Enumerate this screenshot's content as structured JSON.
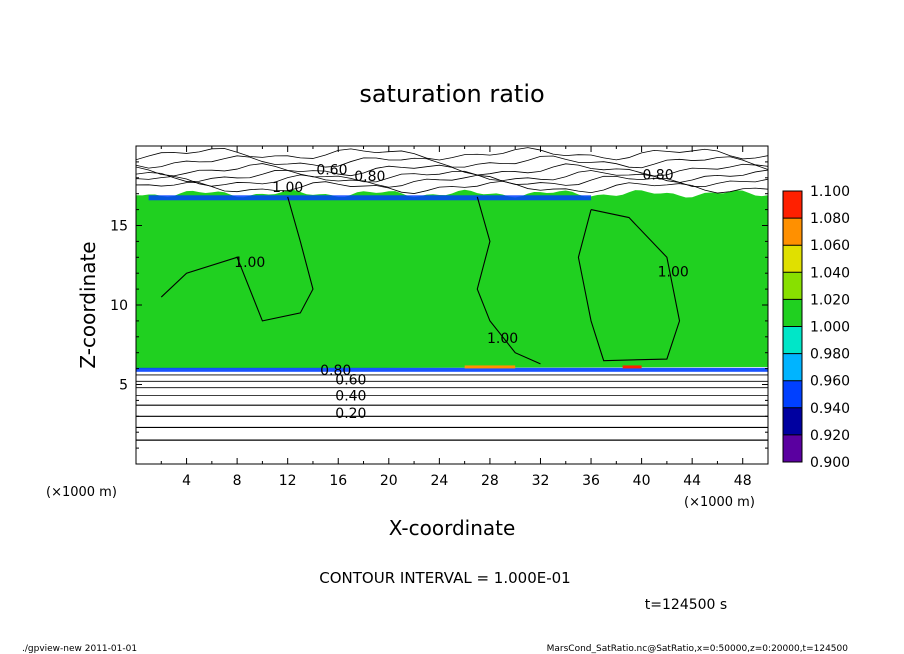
{
  "chart_data": {
    "type": "heatmap",
    "title": "saturation ratio",
    "xlabel": "X-coordinate",
    "ylabel": "Z-coordinate",
    "x_unit": "(×1000 m)",
    "y_unit": "(×1000 m)",
    "xlim": [
      0,
      50
    ],
    "ylim": [
      0,
      20
    ],
    "x_ticks": [
      4,
      8,
      12,
      16,
      20,
      24,
      28,
      32,
      36,
      40,
      44,
      48
    ],
    "y_ticks": [
      5,
      10,
      15
    ],
    "colorbar": {
      "levels": [
        0.9,
        0.92,
        0.94,
        0.96,
        0.98,
        1.0,
        1.02,
        1.04,
        1.06,
        1.08,
        1.1
      ],
      "tick_labels": [
        "0.900",
        "0.920",
        "0.940",
        "0.960",
        "0.980",
        "1.000",
        "1.020",
        "1.040",
        "1.060",
        "1.080",
        "1.100"
      ],
      "colors": [
        "#5a00a0",
        "#0000a0",
        "#0040ff",
        "#00b4ff",
        "#00e6c8",
        "#20d020",
        "#88e000",
        "#e0e000",
        "#ff9000",
        "#ff2000",
        "#ff8080"
      ]
    },
    "field": {
      "saturated_layer_z": [
        6,
        17
      ],
      "value_in_layer": 1.0
    },
    "contour_labels": [
      {
        "text": "0.60",
        "x": 15.5,
        "z": 18.2
      },
      {
        "text": "0.80",
        "x": 18.5,
        "z": 17.8
      },
      {
        "text": "1.00",
        "x": 12,
        "z": 17.1
      },
      {
        "text": "0.80",
        "x": 41.3,
        "z": 17.9
      },
      {
        "text": "1.00",
        "x": 9,
        "z": 12.4
      },
      {
        "text": "1.00",
        "x": 29,
        "z": 7.6
      },
      {
        "text": "1.00",
        "x": 42.5,
        "z": 11.8
      },
      {
        "text": "0.80",
        "x": 15.8,
        "z": 5.6
      },
      {
        "text": "0.60",
        "x": 17,
        "z": 5.0
      },
      {
        "text": "0.40",
        "x": 17,
        "z": 4.0
      },
      {
        "text": "0.20",
        "x": 17,
        "z": 2.9
      }
    ],
    "contour_interval": "CONTOUR INTERVAL = 1.000E-01",
    "time_label": "t=124500 s"
  },
  "footer": {
    "left": "./gpview-new   2011-01-01",
    "right": "MarsCond_SatRatio.nc@SatRatio,x=0:50000,z=0:20000,t=124500"
  }
}
